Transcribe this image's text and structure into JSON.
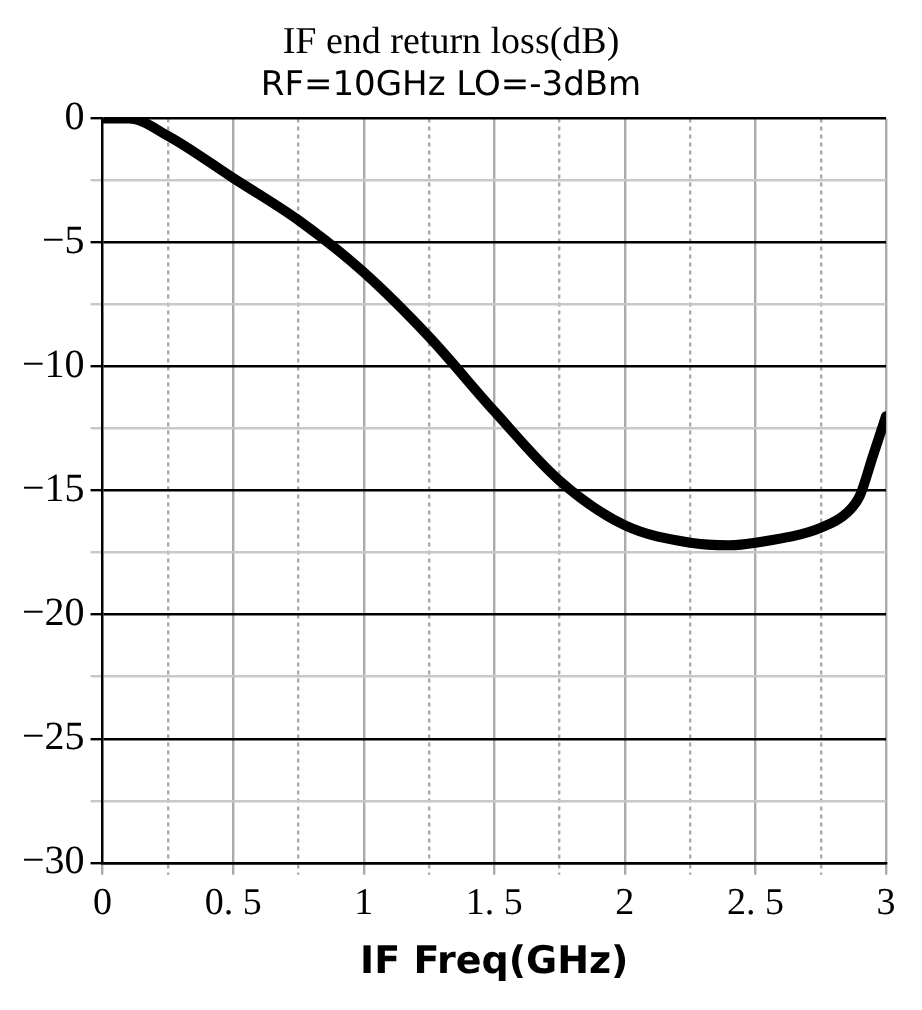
{
  "chart_data": {
    "type": "line",
    "title": "IF end return loss(dB)",
    "subtitle": "RF=10GHz LO=-3dBm",
    "xlabel": "IF Freq(GHz)",
    "x": [
      0,
      0.1,
      0.25,
      0.5,
      0.75,
      1.0,
      1.25,
      1.5,
      1.75,
      2.0,
      2.25,
      2.4,
      2.5,
      2.75,
      2.85,
      2.9,
      2.95,
      3.0
    ],
    "series": [
      {
        "color": "#000000",
        "values": [
          0,
          0,
          -0.7,
          -2.4,
          -4.1,
          -6.2,
          -8.8,
          -11.8,
          -14.6,
          -16.4,
          -17.1,
          -17.2,
          -17.1,
          -16.5,
          -15.9,
          -15.2,
          -13.6,
          -12.0
        ]
      }
    ],
    "xlim": [
      0,
      3
    ],
    "ylim": [
      -30,
      0
    ],
    "xticks": [
      0,
      {
        "value": 0.25,
        "label": null
      },
      0.5,
      {
        "value": 0.75,
        "label": null
      },
      1,
      {
        "value": 1.25,
        "label": null
      },
      1.5,
      {
        "value": 1.75,
        "label": null
      },
      2,
      {
        "value": 2.25,
        "label": null
      },
      2.5,
      {
        "value": 2.75,
        "label": null
      },
      3
    ],
    "yticks": [
      -30,
      {
        "value": -27.5,
        "label": null
      },
      -25,
      {
        "value": -22.5,
        "label": null
      },
      -20,
      {
        "value": -17.5,
        "label": null
      },
      -15,
      {
        "value": -12.5,
        "label": null
      },
      -10,
      {
        "value": -7.5,
        "label": null
      },
      -5,
      {
        "value": -2.5,
        "label": null
      },
      0
    ],
    "grid": true,
    "legend": false,
    "marker": "none",
    "line_style": "solid"
  }
}
